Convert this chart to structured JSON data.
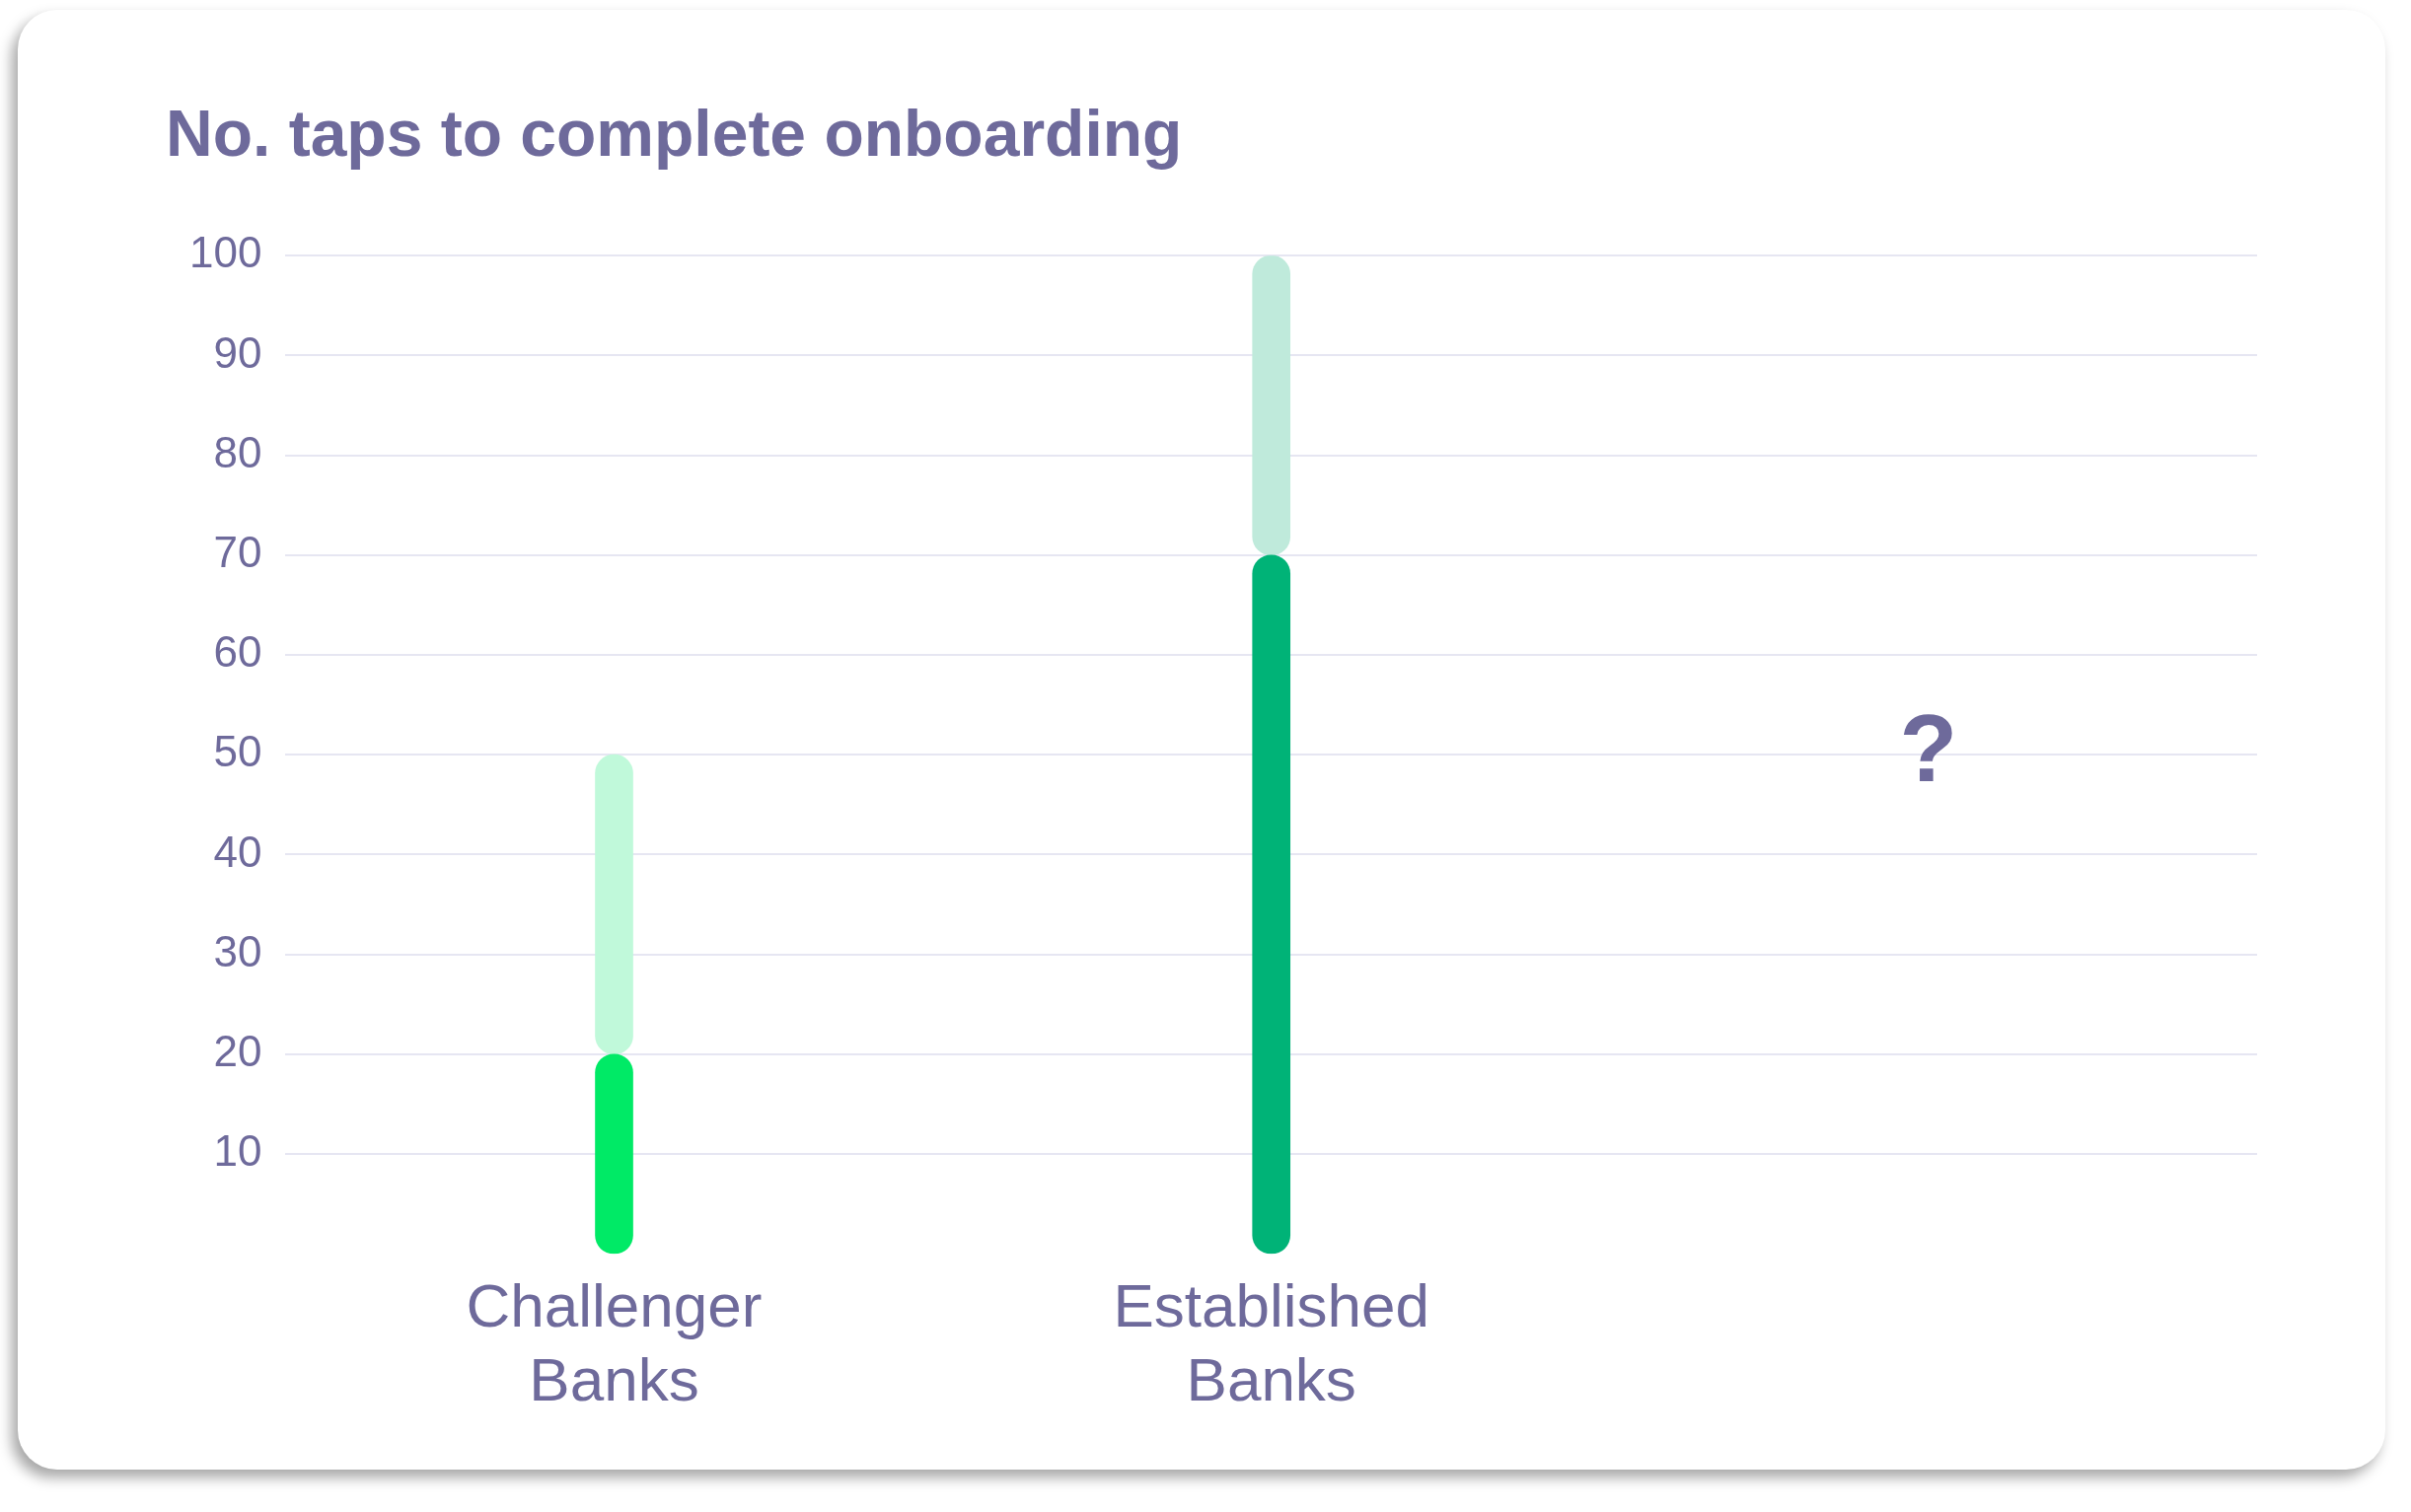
{
  "chart_data": {
    "type": "bar",
    "title": "No. taps to complete onboarding",
    "categories": [
      "Challenger Banks",
      "Established Banks",
      null
    ],
    "stacked": true,
    "series": [
      {
        "colors": [
          "#00ea66",
          "#00b377",
          "#00b377"
        ],
        "values": [
          20,
          70,
          null
        ]
      },
      {
        "colors": [
          "#c0f9da",
          "#bfeadb",
          "#bfeadb"
        ],
        "values": [
          30,
          30,
          null
        ]
      }
    ],
    "ylim": [
      0,
      100
    ],
    "yticks": [
      10,
      20,
      30,
      40,
      50,
      60,
      70,
      80,
      90,
      100
    ],
    "grid": "y",
    "legend": false,
    "annotations": [
      "?"
    ]
  }
}
